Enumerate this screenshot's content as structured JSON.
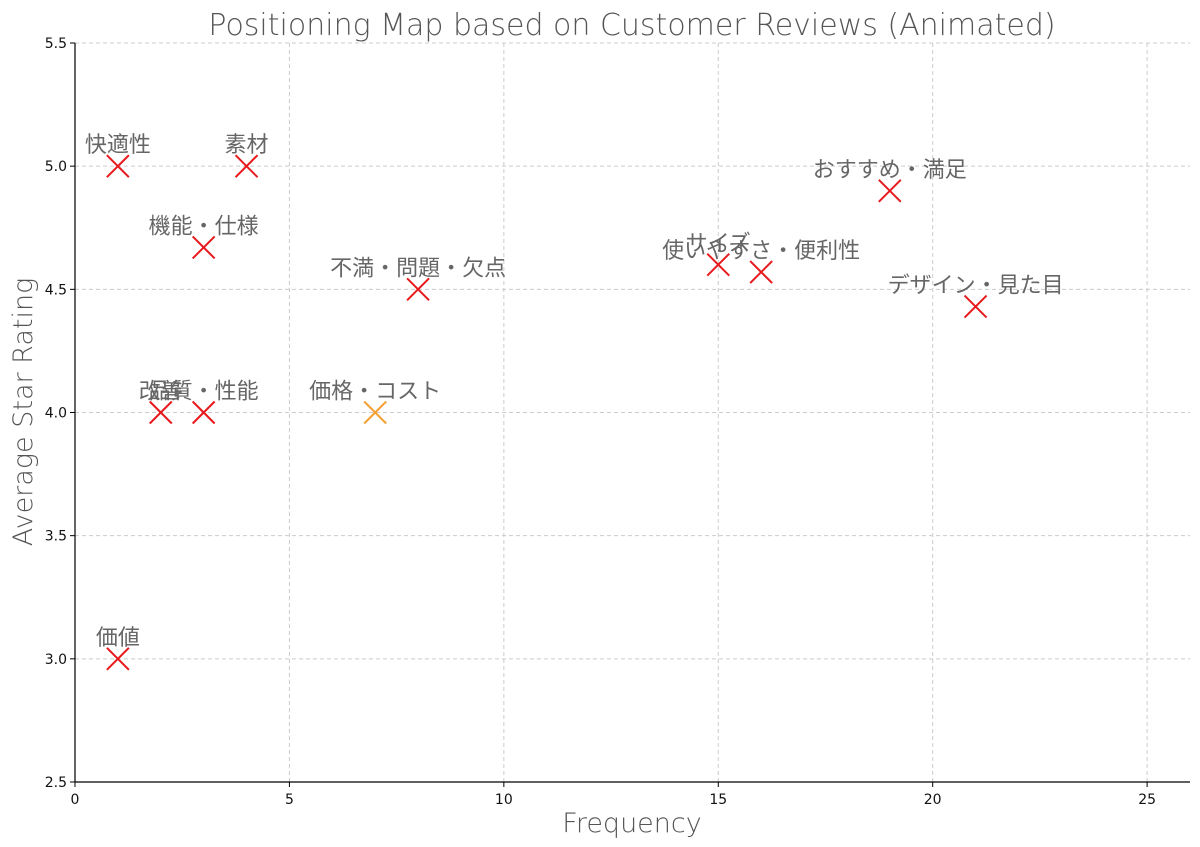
{
  "chart_data": {
    "type": "scatter",
    "title": "Positioning Map based on Customer Reviews (Animated)",
    "xlabel": "Frequency",
    "ylabel": "Average Star Rating",
    "xlim": [
      0,
      26
    ],
    "ylim": [
      2.5,
      5.5
    ],
    "xticks": [
      "0",
      "5",
      "10",
      "15",
      "20",
      "25"
    ],
    "yticks": [
      "2.5",
      "3.0",
      "3.5",
      "4.0",
      "4.5",
      "5.0",
      "5.5"
    ],
    "grid": true,
    "marker": "x",
    "colors": {
      "default": "#e8191d",
      "highlight": "#f5a032"
    },
    "points": [
      {
        "label": "快適性",
        "x": 1,
        "y": 5.0,
        "color": "default"
      },
      {
        "label": "素材",
        "x": 4,
        "y": 5.0,
        "color": "default"
      },
      {
        "label": "機能・仕様",
        "x": 3,
        "y": 4.67,
        "color": "default"
      },
      {
        "label": "不満・問題・欠点",
        "x": 8,
        "y": 4.5,
        "color": "default"
      },
      {
        "label": "サイズ",
        "x": 15,
        "y": 4.6,
        "color": "default"
      },
      {
        "label": "使いやすさ・便利性",
        "x": 16,
        "y": 4.57,
        "color": "default"
      },
      {
        "label": "おすすめ・満足",
        "x": 19,
        "y": 4.9,
        "color": "default"
      },
      {
        "label": "デザイン・見た目",
        "x": 21,
        "y": 4.43,
        "color": "default"
      },
      {
        "label": "改善",
        "x": 2,
        "y": 4.0,
        "color": "default"
      },
      {
        "label": "品質・性能",
        "x": 3,
        "y": 4.0,
        "color": "default"
      },
      {
        "label": "価格・コスト",
        "x": 7,
        "y": 4.0,
        "color": "highlight"
      },
      {
        "label": "価値",
        "x": 1,
        "y": 3.0,
        "color": "default"
      }
    ]
  }
}
